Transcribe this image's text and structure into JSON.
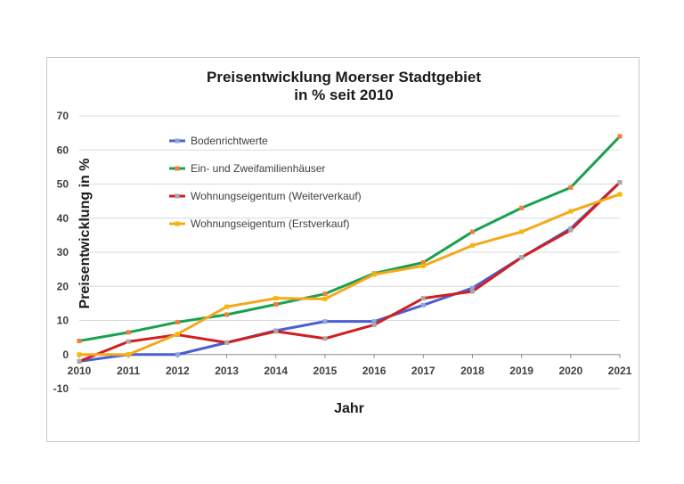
{
  "chart_data": {
    "type": "line",
    "title": [
      "Preisentwicklung Moerser Stadtgebiet",
      "in % seit 2010"
    ],
    "xlabel": "Jahr",
    "ylabel": "Preisentwicklung in %",
    "x": [
      2010,
      2011,
      2012,
      2013,
      2014,
      2015,
      2016,
      2017,
      2018,
      2019,
      2020,
      2021
    ],
    "ylim": [
      -10,
      70
    ],
    "yticks": [
      -10,
      0,
      10,
      20,
      30,
      40,
      50,
      60,
      70
    ],
    "grid": true,
    "legend_position": "top-left",
    "series": [
      {
        "name": "Bodenrichtwerte",
        "color": "#4a5fd4",
        "marker_color": "#8aa6e0",
        "values": [
          -2,
          0,
          0,
          3.5,
          7,
          9.7,
          9.7,
          14.5,
          19.5,
          28.5,
          37,
          50.5
        ]
      },
      {
        "name": "Ein- und Zweifamilienhäuser",
        "color": "#1aa14f",
        "marker_color": "#f07f3c",
        "values": [
          4,
          6.5,
          9.5,
          11.7,
          14.7,
          17.8,
          23.8,
          27,
          36,
          43,
          49,
          64
        ]
      },
      {
        "name": "Wohnungseigentum (Weiterverkauf)",
        "color": "#d11f1f",
        "marker_color": "#a8a8a8",
        "values": [
          -2,
          3.8,
          5.8,
          3.5,
          6.8,
          4.7,
          8.7,
          16.5,
          18.5,
          28.5,
          36.5,
          50.5
        ]
      },
      {
        "name": "Wohnungseigentum (Erstverkauf)",
        "color": "#f5a81c",
        "marker_color": "#f5b800",
        "values": [
          0,
          0,
          6,
          14,
          16.5,
          16.3,
          23.5,
          26,
          32,
          36,
          42,
          47
        ]
      }
    ]
  }
}
